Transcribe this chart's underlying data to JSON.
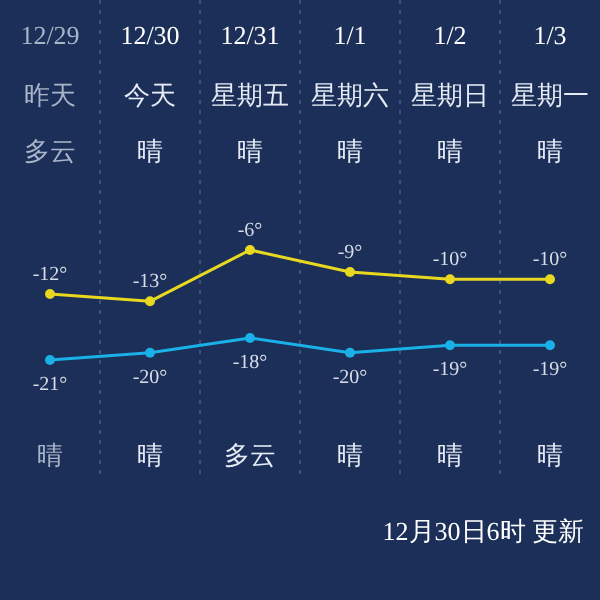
{
  "chart_data": {
    "type": "line",
    "categories": [
      "12/29",
      "12/30",
      "12/31",
      "1/1",
      "1/2",
      "1/3"
    ],
    "series": [
      {
        "color": "#e8d820",
        "values": [
          -12,
          -13,
          -6,
          -9,
          -10,
          -10
        ],
        "value_labels": [
          "-12°",
          "-13°",
          "-6°",
          "-9°",
          "-10°",
          "-10°"
        ]
      },
      {
        "color": "#1ab0e8",
        "values": [
          -21,
          -20,
          -18,
          -20,
          -19,
          -19
        ],
        "value_labels": [
          "-21°",
          "-20°",
          "-18°",
          "-20°",
          "-19°",
          "-19°"
        ]
      }
    ],
    "annotations": [
      "昨天",
      "今天",
      "星期五",
      "星期六",
      "星期日",
      "星期一",
      "多云",
      "晴",
      "晴",
      "晴",
      "晴",
      "晴",
      "晴",
      "晴",
      "多云",
      "晴",
      "晴",
      "晴",
      "12月30日6时 更新"
    ],
    "marker": "circle",
    "line_style": "solid",
    "grid": "x"
  }
}
